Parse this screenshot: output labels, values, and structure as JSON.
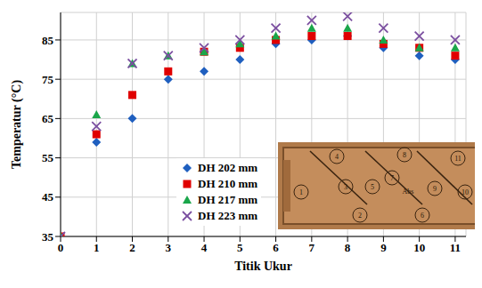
{
  "chart_data": {
    "type": "scatter",
    "xlabel": "Titik Ukur",
    "ylabel": "Temperatur (°C)",
    "x": [
      0,
      1,
      2,
      3,
      4,
      5,
      6,
      7,
      8,
      9,
      10,
      11
    ],
    "xlim": [
      0,
      11.3
    ],
    "xticks": [
      0,
      1,
      2,
      3,
      4,
      5,
      6,
      7,
      8,
      9,
      10,
      11
    ],
    "ylim": [
      35,
      92
    ],
    "yticks": [
      35,
      45,
      55,
      65,
      75,
      85
    ],
    "grid": true,
    "legend": "lower center",
    "series": [
      {
        "name": "DH 202 mm",
        "color": "#1f5fbf",
        "marker": "diamond",
        "values": [
          35,
          59,
          65,
          75,
          77,
          80,
          84,
          85,
          86,
          83,
          81,
          80
        ]
      },
      {
        "name": "DH 210 mm",
        "color": "#e00000",
        "marker": "square",
        "values": [
          35,
          61,
          71,
          77,
          82,
          83,
          85,
          86,
          86,
          84,
          83,
          81
        ]
      },
      {
        "name": "DH 217 mm",
        "color": "#1aa64a",
        "marker": "triangle",
        "values": [
          35,
          66,
          79,
          81,
          82,
          84,
          86,
          88,
          88,
          85,
          83,
          83
        ]
      },
      {
        "name": "DH 223 mm",
        "color": "#7b4fa0",
        "marker": "cross",
        "values": [
          35,
          63,
          79,
          81,
          83,
          85,
          88,
          90,
          91,
          88,
          86,
          85
        ]
      }
    ],
    "annotations": [
      "1",
      "2",
      "3",
      "4",
      "5",
      "6",
      "7",
      "8",
      "9",
      "10",
      "11",
      "Abs"
    ]
  }
}
